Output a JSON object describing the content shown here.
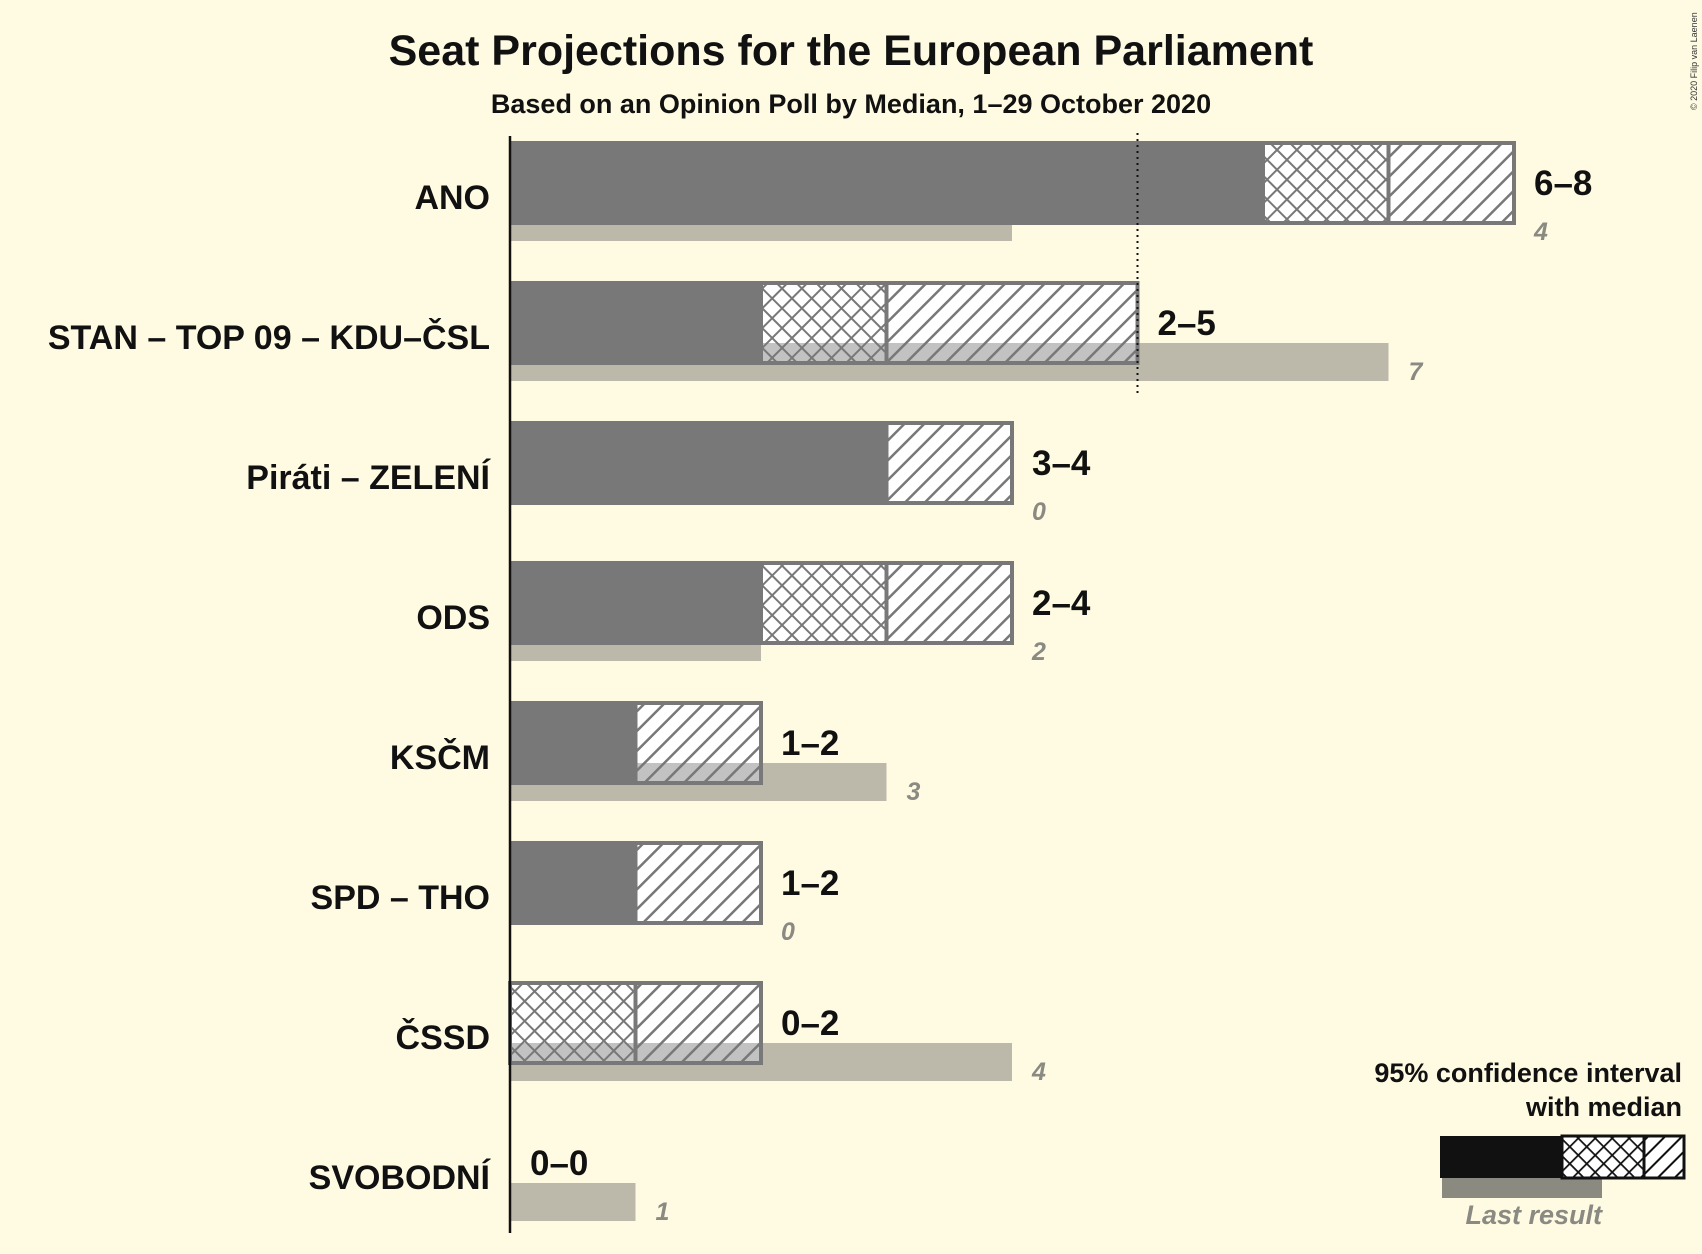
{
  "chart_data": {
    "type": "bar",
    "title": "Seat Projections for the European Parliament",
    "subtitle": "Based on an Opinion Poll by Median, 1–29 October 2020",
    "copyright": "© 2020 Filip van Laenen",
    "majority_line": 5,
    "categories": [
      "ANO",
      "STAN – TOP 09 – KDU–ČSL",
      "Piráti – ZELENÍ",
      "ODS",
      "KSČM",
      "SPD – THO",
      "ČSSD",
      "SVOBODNÍ"
    ],
    "series": [
      {
        "name": "95% confidence interval low",
        "values": [
          6,
          2,
          3,
          2,
          1,
          1,
          0,
          0
        ]
      },
      {
        "name": "median",
        "values": [
          7,
          3,
          3,
          3,
          1,
          1,
          1,
          0
        ]
      },
      {
        "name": "95% confidence interval high",
        "values": [
          8,
          5,
          4,
          4,
          2,
          2,
          2,
          0
        ]
      },
      {
        "name": "Last result",
        "values": [
          4,
          7,
          0,
          2,
          3,
          0,
          4,
          1
        ]
      }
    ],
    "range_labels": [
      "6–8",
      "2–5",
      "3–4",
      "2–4",
      "1–2",
      "1–2",
      "0–2",
      "0–0"
    ],
    "last_labels": [
      "4",
      "7",
      "0",
      "2",
      "3",
      "0",
      "4",
      "1"
    ],
    "colors": {
      "bar": "#787878",
      "last": "#bcb9ab",
      "text": "#111111",
      "last_text": "#8a8a82",
      "background": "#fffbe3"
    },
    "legend": {
      "line1": "95% confidence interval",
      "line2": "with median",
      "last": "Last result",
      "position": "bottom-right"
    }
  }
}
